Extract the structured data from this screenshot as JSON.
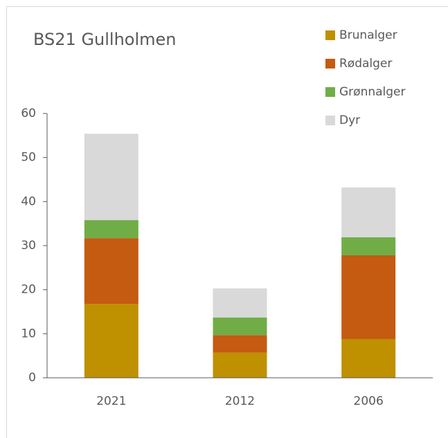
{
  "chart_data": {
    "type": "stacked_bar",
    "title": "BS21 Gullholmen",
    "categories": [
      "2021",
      "2012",
      "2006"
    ],
    "series": [
      {
        "name": "Brunalger",
        "color": "#bf9000",
        "values": [
          16.8,
          5.7,
          8.8
        ]
      },
      {
        "name": "Rødalger",
        "color": "#c55a11",
        "values": [
          14.9,
          4.0,
          19.0
        ]
      },
      {
        "name": "Grønnalger",
        "color": "#70ad47",
        "values": [
          4.1,
          4.0,
          4.1
        ]
      },
      {
        "name": "Dyr",
        "color": "#d9d9d9",
        "values": [
          19.6,
          6.6,
          11.3
        ]
      }
    ],
    "ylim": [
      0,
      60
    ],
    "yticks": [
      0,
      10,
      20,
      30,
      40,
      50,
      60
    ],
    "grid": false,
    "legend": "top-right"
  }
}
